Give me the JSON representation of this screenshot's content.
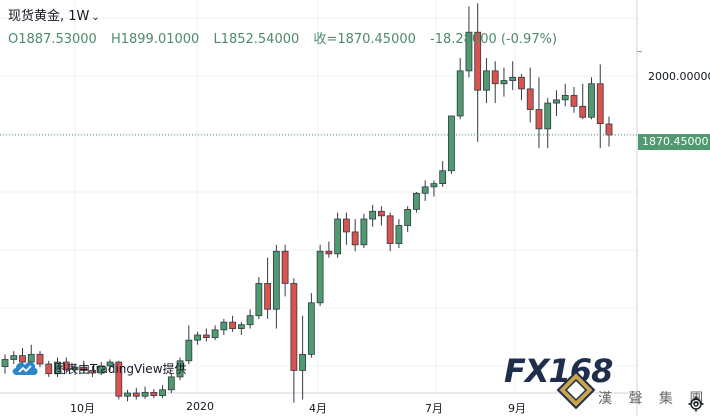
{
  "legend": {
    "symbol": "现货黄金,",
    "interval": "1W",
    "open": "O1887.53000",
    "high": "H1899.01000",
    "low": "L1852.54000",
    "close": "收=1870.45000",
    "change": "-18.28000 (-0.97%)"
  },
  "price_tag": "1870.45000",
  "credit": "图表由TradingView提供",
  "watermark": {
    "brand": "FX168",
    "cn": "漢 聲 集 團"
  },
  "colors": {
    "up": "#4f9a6f",
    "down": "#d9534f",
    "grid": "#eef0f3"
  },
  "chart_data": {
    "type": "candlestick",
    "title": "现货黄金, 1W",
    "ylabel": "",
    "y_ticks": [
      2000.0
    ],
    "y_tick_labels": [
      "2000.00000"
    ],
    "ylim": [
      1470,
      2080
    ],
    "x_labels": [
      "10月",
      "2020",
      "4月",
      "7月",
      "9月"
    ],
    "last_price": 1870.45,
    "candles": [
      [
        1511,
        1530,
        1500,
        1522
      ],
      [
        1522,
        1535,
        1515,
        1528
      ],
      [
        1528,
        1540,
        1512,
        1518
      ],
      [
        1518,
        1545,
        1510,
        1530
      ],
      [
        1530,
        1535,
        1510,
        1515
      ],
      [
        1515,
        1520,
        1495,
        1500
      ],
      [
        1500,
        1525,
        1495,
        1518
      ],
      [
        1518,
        1525,
        1500,
        1506
      ],
      [
        1506,
        1516,
        1498,
        1510
      ],
      [
        1510,
        1520,
        1500,
        1505
      ],
      [
        1505,
        1512,
        1495,
        1501
      ],
      [
        1501,
        1518,
        1498,
        1512
      ],
      [
        1512,
        1522,
        1505,
        1518
      ],
      [
        1518,
        1520,
        1460,
        1465
      ],
      [
        1465,
        1475,
        1457,
        1470
      ],
      [
        1470,
        1478,
        1460,
        1465
      ],
      [
        1465,
        1480,
        1461,
        1471
      ],
      [
        1471,
        1476,
        1462,
        1466
      ],
      [
        1466,
        1482,
        1462,
        1475
      ],
      [
        1475,
        1500,
        1470,
        1495
      ],
      [
        1495,
        1525,
        1490,
        1520
      ],
      [
        1520,
        1575,
        1515,
        1552
      ],
      [
        1552,
        1565,
        1545,
        1560
      ],
      [
        1560,
        1570,
        1550,
        1556
      ],
      [
        1556,
        1575,
        1552,
        1568
      ],
      [
        1568,
        1585,
        1560,
        1580
      ],
      [
        1580,
        1590,
        1565,
        1570
      ],
      [
        1570,
        1580,
        1560,
        1576
      ],
      [
        1576,
        1600,
        1570,
        1590
      ],
      [
        1590,
        1650,
        1585,
        1640
      ],
      [
        1640,
        1680,
        1585,
        1600
      ],
      [
        1600,
        1700,
        1570,
        1690
      ],
      [
        1690,
        1700,
        1620,
        1640
      ],
      [
        1640,
        1648,
        1455,
        1505
      ],
      [
        1505,
        1590,
        1460,
        1530
      ],
      [
        1530,
        1625,
        1525,
        1610
      ],
      [
        1610,
        1700,
        1605,
        1690
      ],
      [
        1690,
        1705,
        1680,
        1686
      ],
      [
        1686,
        1750,
        1680,
        1740
      ],
      [
        1740,
        1750,
        1700,
        1720
      ],
      [
        1720,
        1740,
        1690,
        1700
      ],
      [
        1700,
        1748,
        1695,
        1740
      ],
      [
        1740,
        1762,
        1728,
        1752
      ],
      [
        1752,
        1760,
        1730,
        1745
      ],
      [
        1745,
        1750,
        1690,
        1702
      ],
      [
        1702,
        1740,
        1695,
        1730
      ],
      [
        1730,
        1760,
        1720,
        1755
      ],
      [
        1755,
        1782,
        1750,
        1780
      ],
      [
        1780,
        1800,
        1768,
        1790
      ],
      [
        1790,
        1800,
        1775,
        1795
      ],
      [
        1795,
        1830,
        1790,
        1815
      ],
      [
        1815,
        1900,
        1810,
        1900
      ],
      [
        1900,
        1990,
        1895,
        1970
      ],
      [
        1970,
        2070,
        1960,
        2030
      ],
      [
        2030,
        2075,
        1860,
        1940
      ],
      [
        1940,
        1990,
        1920,
        1970
      ],
      [
        1970,
        1985,
        1920,
        1950
      ],
      [
        1950,
        1975,
        1930,
        1955
      ],
      [
        1955,
        1985,
        1940,
        1960
      ],
      [
        1960,
        1965,
        1925,
        1942
      ],
      [
        1942,
        1975,
        1890,
        1910
      ],
      [
        1910,
        1960,
        1850,
        1880
      ],
      [
        1880,
        1928,
        1850,
        1920
      ],
      [
        1920,
        1940,
        1900,
        1925
      ],
      [
        1925,
        1950,
        1915,
        1932
      ],
      [
        1932,
        1945,
        1905,
        1915
      ],
      [
        1915,
        1950,
        1895,
        1898
      ],
      [
        1898,
        1960,
        1895,
        1950
      ],
      [
        1950,
        1980,
        1850,
        1888
      ],
      [
        1887.53,
        1899.01,
        1852.54,
        1870.45
      ]
    ]
  }
}
